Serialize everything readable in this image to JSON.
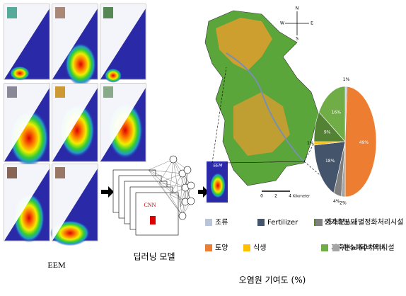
{
  "eem": {
    "label": "EEM"
  },
  "model": {
    "label": "딥러닝 모델",
    "cnn": "CNN",
    "output": "EEM"
  },
  "map": {
    "compass": [
      "N",
      "E",
      "S",
      "W"
    ],
    "scale": [
      "0",
      "2",
      "4"
    ],
    "scale_unit": "Kilometer"
  },
  "pie": {
    "slices": [
      {
        "name": "조류",
        "color": "#b8c4d8",
        "value": 1,
        "label": "1%"
      },
      {
        "name": "토양",
        "color": "#ed7d31",
        "value": 49,
        "label": "49%"
      },
      {
        "name": "하수폐수처리시설",
        "color": "#a5a5a5",
        "value": 2,
        "label": "2%"
      },
      {
        "name": "가축분뇨개별정화처리시설",
        "color": "#7f7f7f",
        "value": 4,
        "label": "4%"
      },
      {
        "name": "Fertilizer",
        "color": "#44546a",
        "value": 18,
        "label": "18%"
      },
      {
        "name": "식생",
        "color": "#ffc000",
        "value": 1,
        "label": "1%"
      },
      {
        "name": "생가축분뇨",
        "color": "#548235",
        "value": 9,
        "label": "9%"
      },
      {
        "name": "가축분뇨 퇴비액비",
        "color": "#70ad47",
        "value": 16,
        "label": "16%"
      }
    ],
    "legend_order": [
      0,
      4,
      6,
      3,
      1,
      5,
      7,
      2
    ],
    "caption": "오염원 기여도 (%)"
  }
}
